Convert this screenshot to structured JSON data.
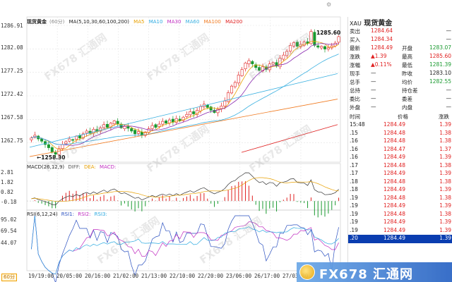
{
  "chart": {
    "main_title": "现货黄金",
    "period_tag": "(60分)",
    "ma_label": "MA(5,10,30,60,100,200)",
    "ma_items": [
      {
        "label": "MA5",
        "color": "#e8a000"
      },
      {
        "label": "MA10",
        "color": "#2aa9e0"
      },
      {
        "label": "MA30",
        "color": "#c02cc0"
      },
      {
        "label": "MA60",
        "color": "#3ab0e0"
      },
      {
        "label": "MA100",
        "color": "#f07a20"
      },
      {
        "label": "MA200",
        "color": "#e02020"
      }
    ],
    "y_axis_main": [
      "1286.91",
      "1282.08",
      "1277.25",
      "1272.42",
      "1267.58",
      "1262.75"
    ],
    "high_tag": "1285.60",
    "low_tag": "1258.30",
    "macd_legend": {
      "name": "MACD(26,12,9)",
      "items": [
        "DIFF:",
        "DEA:",
        "MACD:"
      ]
    },
    "y_axis_macd": [
      "2.81",
      "1.82",
      "0.82",
      "-0.18"
    ],
    "rsi_legend": {
      "name": "RSI(6,12,24)",
      "items": [
        "RSI1:",
        "RSI2:",
        "RSI3:"
      ]
    },
    "y_axis_rsi": [
      "95.02",
      "69.54",
      "44.07"
    ],
    "x_axis": [
      "19/19:00",
      "20/05:00",
      "20/16:00",
      "21/02:00",
      "21/13:00",
      "22/10:00",
      "22/20:00",
      "23/06:00",
      "26/17:00",
      "27/03:00"
    ],
    "period_button": "60分",
    "watermark": "FX678 汇通网",
    "colors": {
      "up": "#e02020",
      "down": "#1a9a30",
      "diff": "#333333",
      "dea": "#e8a000"
    }
  },
  "chart_data": {
    "type": "candlestick",
    "symbol": "XAU 现货黄金",
    "interval": "60分",
    "ylim": [
      1258.3,
      1286.91
    ],
    "close": [
      1262.6,
      1263.2,
      1262.4,
      1261.9,
      1261.2,
      1260.5,
      1259.6,
      1259.1,
      1260.3,
      1261.2,
      1261.8,
      1262.4,
      1262.1,
      1263.0,
      1262.6,
      1263.5,
      1264.1,
      1263.6,
      1264.5,
      1264.0,
      1264.8,
      1265.5,
      1264.9,
      1265.8,
      1266.3,
      1265.6,
      1264.8,
      1265.2,
      1264.7,
      1264.1,
      1263.5,
      1264.0,
      1263.2,
      1263.9,
      1264.6,
      1265.3,
      1264.9,
      1265.6,
      1266.2,
      1265.8,
      1266.5,
      1266.0,
      1266.8,
      1266.3,
      1267.1,
      1267.7,
      1268.3,
      1267.8,
      1268.6,
      1269.4,
      1269.9,
      1269.2,
      1268.6,
      1268.1,
      1268.8,
      1269.5,
      1270.6,
      1272.4,
      1273.8,
      1274.6,
      1276.2,
      1277.4,
      1278.8,
      1279.3,
      1278.6,
      1277.8,
      1277.2,
      1278.0,
      1277.4,
      1278.6,
      1278.9,
      1278.1,
      1279.8,
      1280.5,
      1281.3,
      1282.6,
      1283.2,
      1282.4,
      1282.8,
      1283.3,
      1283.0,
      1285.6,
      1282.6,
      1282.2,
      1282.4,
      1281.8,
      1282.1,
      1282.5,
      1283.1,
      1284.49
    ],
    "macd_range": [
      -0.18,
      2.81
    ],
    "rsi_range": [
      44.07,
      95.02
    ]
  },
  "quote": {
    "symbol": "XAU",
    "name": "现货黄金",
    "rows": [
      {
        "l1": "卖出",
        "v1": "1284.64",
        "v1c": "red",
        "l2": "",
        "v2": "—",
        "v2c": "dark"
      },
      {
        "l1": "买入",
        "v1": "1284.34",
        "v1c": "red",
        "l2": "",
        "v2": "—",
        "v2c": "dark"
      },
      {
        "l1": "最新",
        "v1": "1284.49",
        "v1c": "red",
        "l2": "开盘",
        "v2": "1283.07",
        "v2c": "grn"
      },
      {
        "l1": "涨跌",
        "v1": "▲1.39",
        "v1c": "red",
        "l2": "最高",
        "v2": "1285.60",
        "v2c": "red"
      },
      {
        "l1": "涨幅",
        "v1": "▲0.11%",
        "v1c": "red",
        "l2": "最低",
        "v2": "1281.39",
        "v2c": "grn"
      },
      {
        "l1": "现手",
        "v1": "—",
        "v1c": "dark",
        "l2": "昨收",
        "v2": "1283.10",
        "v2c": "dark"
      },
      {
        "l1": "总手",
        "v1": "—",
        "v1c": "dark",
        "l2": "均价",
        "v2": "1282.55",
        "v2c": "grn"
      },
      {
        "l1": "总持",
        "v1": "—",
        "v1c": "dark",
        "l2": "持仓差",
        "v2": "—",
        "v2c": "dark"
      },
      {
        "l1": "委比",
        "v1": "—",
        "v1c": "dark",
        "l2": "委差",
        "v2": "—",
        "v2c": "dark"
      },
      {
        "l1": "外盘",
        "v1": "—",
        "v1c": "dark",
        "l2": "内盘",
        "v2": "—",
        "v2c": "dark"
      }
    ],
    "trade_headers": {
      "time": "时间",
      "price": "价格",
      "change": "涨跌"
    },
    "trades": [
      {
        "time": "15:48",
        "price": "1284.49",
        "change": "1.39"
      },
      {
        "time": ".15",
        "price": "1284.48",
        "change": "1.38"
      },
      {
        "time": ".16",
        "price": "1284.48",
        "change": "1.38"
      },
      {
        "time": ".16",
        "price": "1284.47",
        "change": "1.37"
      },
      {
        "time": ".16",
        "price": "1284.49",
        "change": "1.39"
      },
      {
        "time": ".17",
        "price": "1284.48",
        "change": "1.38"
      },
      {
        "time": ".17",
        "price": "1284.49",
        "change": "1.39"
      },
      {
        "time": ".18",
        "price": "1284.48",
        "change": "1.38"
      },
      {
        "time": ".18",
        "price": "1284.49",
        "change": "1.39"
      },
      {
        "time": ".19",
        "price": "1284.48",
        "change": "1.38"
      },
      {
        "time": ".19",
        "price": "1284.49",
        "change": "1.39"
      },
      {
        "time": ".19",
        "price": "1284.48",
        "change": "1.38"
      },
      {
        "time": ".19",
        "price": "1284.49",
        "change": "1.39"
      },
      {
        "time": ".19",
        "price": "1284.49",
        "change": "1.39"
      },
      {
        "time": ".20",
        "price": "1284.49",
        "change": "1.39"
      }
    ],
    "highlight_index": 14
  },
  "banner": {
    "text": "FX678 汇通网"
  }
}
